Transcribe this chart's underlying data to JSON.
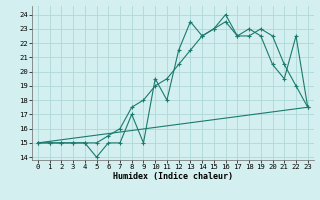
{
  "xlabel": "Humidex (Indice chaleur)",
  "bg_color": "#d4efef",
  "grid_color": "#aed8d8",
  "line_color": "#1a7a6e",
  "xlim": [
    -0.5,
    23.5
  ],
  "ylim": [
    13.8,
    24.6
  ],
  "yticks": [
    14,
    15,
    16,
    17,
    18,
    19,
    20,
    21,
    22,
    23,
    24
  ],
  "xticks": [
    0,
    1,
    2,
    3,
    4,
    5,
    6,
    7,
    8,
    9,
    10,
    11,
    12,
    13,
    14,
    15,
    16,
    17,
    18,
    19,
    20,
    21,
    22,
    23
  ],
  "line1_x": [
    0,
    1,
    2,
    3,
    4,
    5,
    6,
    7,
    8,
    9,
    10,
    11,
    12,
    13,
    14,
    15,
    16,
    17,
    18,
    19,
    20,
    21,
    22,
    23
  ],
  "line1_y": [
    15,
    15,
    15,
    15,
    15,
    14,
    15,
    15,
    17,
    15,
    19.5,
    18,
    21.5,
    23.5,
    22.5,
    23,
    24,
    22.5,
    23,
    22.5,
    20.5,
    19.5,
    22.5,
    17.5
  ],
  "line2_x": [
    0,
    1,
    2,
    3,
    4,
    5,
    6,
    7,
    8,
    9,
    10,
    11,
    12,
    13,
    14,
    15,
    16,
    17,
    18,
    19,
    20,
    21,
    22,
    23
  ],
  "line2_y": [
    15,
    15,
    15,
    15,
    15,
    15,
    15.5,
    16,
    17.5,
    18,
    19,
    19.5,
    20.5,
    21.5,
    22.5,
    23,
    23.5,
    22.5,
    22.5,
    23,
    22.5,
    20.5,
    19,
    17.5
  ],
  "line3_x": [
    0,
    23
  ],
  "line3_y": [
    15,
    17.5
  ],
  "xlabel_fontsize": 6.0,
  "tick_fontsize": 5.2,
  "lw": 0.8,
  "ms": 2.8
}
